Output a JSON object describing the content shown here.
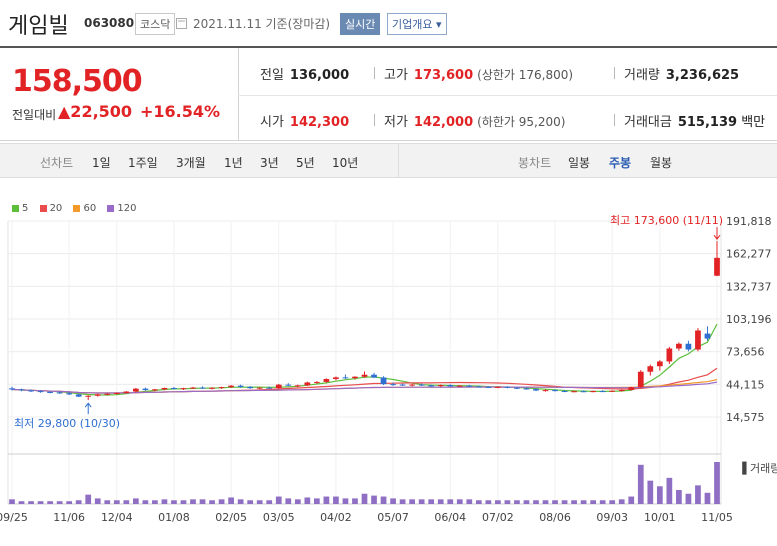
{
  "header": {
    "name": "게임빌",
    "code": "063080",
    "market": "코스닥",
    "date": "2021.11.11 기준(장마감)",
    "realtime_label": "실시간",
    "overview_label": "기업개요 ▾"
  },
  "price": {
    "current": "158,500",
    "change_label": "전일대비",
    "change_value": "▲22,500",
    "change_pct": "+16.54%"
  },
  "stats": {
    "prev_label": "전일",
    "prev": "136,000",
    "high_label": "고가",
    "high": "173,600",
    "upper_limit": "(상한가 176,800)",
    "vol_label": "거래량",
    "vol": "3,236,625",
    "open_label": "시가",
    "open": "142,300",
    "low_label": "저가",
    "low": "142,000",
    "lower_limit": "(하한가 95,200)",
    "amt_label": "거래대금",
    "amt": "515,139",
    "amt_unit": "백만"
  },
  "tabs": {
    "line_label": "선차트",
    "line_items": [
      "1일",
      "1주일",
      "3개월",
      "1년",
      "3년",
      "5년",
      "10년"
    ],
    "candle_label": "봉차트",
    "candle_items": [
      "일봉",
      "주봉",
      "월봉"
    ],
    "active": "주봉"
  },
  "legend": [
    {
      "label": "5",
      "color": "#5bbf3a"
    },
    {
      "label": "20",
      "color": "#e84c4c"
    },
    {
      "label": "60",
      "color": "#f39a2b"
    },
    {
      "label": "120",
      "color": "#9a6cc9"
    }
  ],
  "chart_data": {
    "type": "candlestick",
    "y_ticks": [
      "191,818",
      "162,277",
      "132,737",
      "103,196",
      "73,656",
      "44,115",
      "14,575"
    ],
    "ylim": [
      14575,
      191818
    ],
    "x_ticks": [
      "09/25",
      "11/06",
      "12/04",
      "01/08",
      "02/05",
      "03/05",
      "04/02",
      "05/07",
      "06/04",
      "07/02",
      "08/06",
      "09/03",
      "10/01",
      "11/05"
    ],
    "volume_label": "거래량",
    "annotations": {
      "high": "최고 173,600 (11/11)",
      "low": "최저 29,800 (10/30)"
    },
    "candles": [
      [
        40500,
        42000,
        38500,
        39500
      ],
      [
        39500,
        40200,
        37800,
        38600
      ],
      [
        38600,
        39400,
        37200,
        38000
      ],
      [
        38000,
        38800,
        36500,
        37200
      ],
      [
        37200,
        38000,
        36000,
        36800
      ],
      [
        36800,
        37600,
        35500,
        36100
      ],
      [
        36100,
        37000,
        34500,
        35000
      ],
      [
        35000,
        35800,
        32500,
        33000
      ],
      [
        33000,
        34200,
        29800,
        33800
      ],
      [
        33800,
        35500,
        33000,
        35000
      ],
      [
        35000,
        36200,
        34200,
        35600
      ],
      [
        35600,
        36800,
        34800,
        36300
      ],
      [
        36300,
        38000,
        35500,
        37600
      ],
      [
        37600,
        40800,
        36800,
        40200
      ],
      [
        40200,
        41200,
        38200,
        39000
      ],
      [
        39000,
        40000,
        37800,
        39600
      ],
      [
        39600,
        41200,
        38800,
        40800
      ],
      [
        40800,
        41800,
        39500,
        40200
      ],
      [
        40200,
        41000,
        39000,
        40600
      ],
      [
        40600,
        41800,
        39800,
        41200
      ],
      [
        41200,
        42300,
        40000,
        40500
      ],
      [
        40500,
        41500,
        39500,
        41000
      ],
      [
        41000,
        42000,
        40000,
        41600
      ],
      [
        41600,
        43500,
        40800,
        42900
      ],
      [
        42900,
        43800,
        41000,
        41800
      ],
      [
        41800,
        42500,
        40000,
        40600
      ],
      [
        40600,
        41500,
        39800,
        41100
      ],
      [
        41100,
        42200,
        40300,
        40800
      ],
      [
        40800,
        44500,
        40000,
        43800
      ],
      [
        43800,
        45200,
        42500,
        42900
      ],
      [
        42900,
        43800,
        41500,
        43200
      ],
      [
        43200,
        46500,
        42600,
        45800
      ],
      [
        45800,
        47000,
        44500,
        46300
      ],
      [
        46300,
        49500,
        45500,
        48900
      ],
      [
        48900,
        51200,
        47800,
        50400
      ],
      [
        50400,
        53000,
        49000,
        49800
      ],
      [
        49800,
        51500,
        48500,
        51000
      ],
      [
        51000,
        55800,
        50000,
        52800
      ],
      [
        52800,
        54500,
        49800,
        50300
      ],
      [
        50300,
        51500,
        43500,
        44300
      ],
      [
        44300,
        45800,
        42800,
        43900
      ],
      [
        43900,
        44800,
        42800,
        43500
      ],
      [
        43500,
        44600,
        42300,
        43900
      ],
      [
        43900,
        44800,
        42600,
        43200
      ],
      [
        43200,
        43900,
        42000,
        42600
      ],
      [
        42600,
        44000,
        41600,
        43400
      ],
      [
        43400,
        44200,
        41900,
        42300
      ],
      [
        42300,
        43400,
        41700,
        42900
      ],
      [
        42900,
        43600,
        41600,
        42200
      ],
      [
        42200,
        43100,
        41200,
        41800
      ],
      [
        41800,
        42500,
        40800,
        41300
      ],
      [
        41300,
        42200,
        40600,
        41800
      ],
      [
        41800,
        42400,
        40600,
        41000
      ],
      [
        41000,
        41800,
        39800,
        40400
      ],
      [
        40400,
        41200,
        39200,
        39800
      ],
      [
        39800,
        40500,
        38000,
        38500
      ],
      [
        38500,
        39600,
        37500,
        38900
      ],
      [
        38900,
        39800,
        37600,
        38100
      ],
      [
        38100,
        38900,
        37000,
        37500
      ],
      [
        37500,
        38500,
        36800,
        37900
      ],
      [
        37900,
        38600,
        37000,
        37400
      ],
      [
        37400,
        38500,
        36900,
        38000
      ],
      [
        38000,
        38800,
        37300,
        37700
      ],
      [
        37700,
        38800,
        37200,
        38300
      ],
      [
        38300,
        39400,
        37600,
        39000
      ],
      [
        39000,
        42000,
        38500,
        41500
      ],
      [
        41500,
        57000,
        40800,
        55500
      ],
      [
        55500,
        62000,
        52000,
        60500
      ],
      [
        60500,
        66000,
        56500,
        64800
      ],
      [
        64800,
        78000,
        62500,
        76500
      ],
      [
        76500,
        82000,
        74500,
        80800
      ],
      [
        80800,
        83500,
        74000,
        75600
      ],
      [
        75600,
        95000,
        74000,
        92800
      ],
      [
        90000,
        96500,
        83500,
        85500
      ],
      [
        142300,
        173600,
        142000,
        158500
      ]
    ],
    "volume": [
      5,
      3,
      3,
      3,
      3,
      3,
      3,
      4,
      10,
      6,
      4,
      4,
      4,
      6,
      4,
      4,
      5,
      4,
      4,
      5,
      5,
      4,
      5,
      7,
      5,
      4,
      4,
      4,
      8,
      6,
      5,
      7,
      6,
      8,
      8,
      6,
      6,
      11,
      9,
      8,
      6,
      5,
      5,
      5,
      5,
      5,
      5,
      5,
      5,
      4,
      4,
      4,
      4,
      4,
      4,
      4,
      4,
      4,
      4,
      4,
      4,
      4,
      4,
      4,
      5,
      8,
      42,
      25,
      19,
      28,
      15,
      11,
      20,
      12,
      45
    ]
  }
}
